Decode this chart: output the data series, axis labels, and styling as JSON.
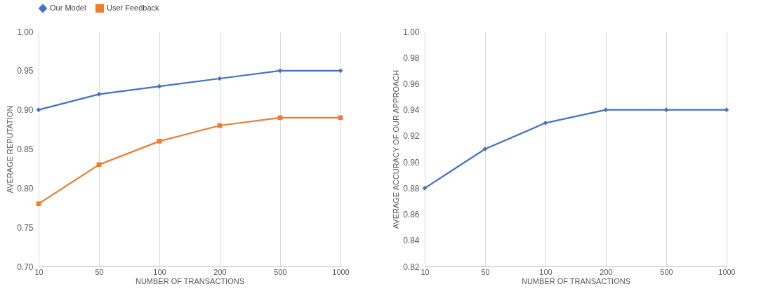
{
  "chart_data": [
    {
      "type": "line",
      "xlabel": "NUMBER OF TRANSACTIONS",
      "ylabel": "AVERAGE REPUTATION",
      "categories": [
        "10",
        "50",
        "100",
        "200",
        "500",
        "1000"
      ],
      "series": [
        {
          "name": "Our Model",
          "color": "#4472c4",
          "marker": "diamond",
          "values": [
            0.9,
            0.92,
            0.93,
            0.94,
            0.95,
            0.95
          ]
        },
        {
          "name": "User Feedback",
          "color": "#ed7d31",
          "marker": "square",
          "values": [
            0.78,
            0.83,
            0.86,
            0.88,
            0.89,
            0.89
          ]
        }
      ],
      "ylim": [
        0.7,
        1.0
      ],
      "yticks": [
        {
          "value": 0.7,
          "label": "0.70"
        },
        {
          "value": 0.75,
          "label": "0.75"
        },
        {
          "value": 0.8,
          "label": "0.80"
        },
        {
          "value": 0.85,
          "label": "0.85"
        },
        {
          "value": 0.9,
          "label": "0.90"
        },
        {
          "value": 0.95,
          "label": "0.95"
        },
        {
          "value": 1.0,
          "label": "1.00"
        }
      ],
      "grid": "x",
      "legend": "top",
      "line_style": "solid"
    },
    {
      "type": "line",
      "xlabel": "NUMBER OF TRANSACTIONS",
      "ylabel": "AVERAGE ACCURACY OF OUR APPROACH",
      "categories": [
        "10",
        "50",
        "100",
        "200",
        "500",
        "1000"
      ],
      "series": [
        {
          "color": "#4472c4",
          "marker": "diamond",
          "values": [
            0.88,
            0.91,
            0.93,
            0.94,
            0.94,
            0.94
          ]
        }
      ],
      "ylim": [
        0.82,
        1.0
      ],
      "yticks": [
        {
          "value": 0.82,
          "label": "0.82"
        },
        {
          "value": 0.84,
          "label": "0.84"
        },
        {
          "value": 0.86,
          "label": "0.86"
        },
        {
          "value": 0.88,
          "label": "0.88"
        },
        {
          "value": 0.9,
          "label": "0.90"
        },
        {
          "value": 0.92,
          "label": "0.92"
        },
        {
          "value": 0.94,
          "label": "0.94"
        },
        {
          "value": 0.96,
          "label": "0.96"
        },
        {
          "value": 0.98,
          "label": "0.98"
        },
        {
          "value": 1.0,
          "label": "1.00"
        }
      ],
      "grid": "x",
      "line_style": "solid"
    }
  ]
}
